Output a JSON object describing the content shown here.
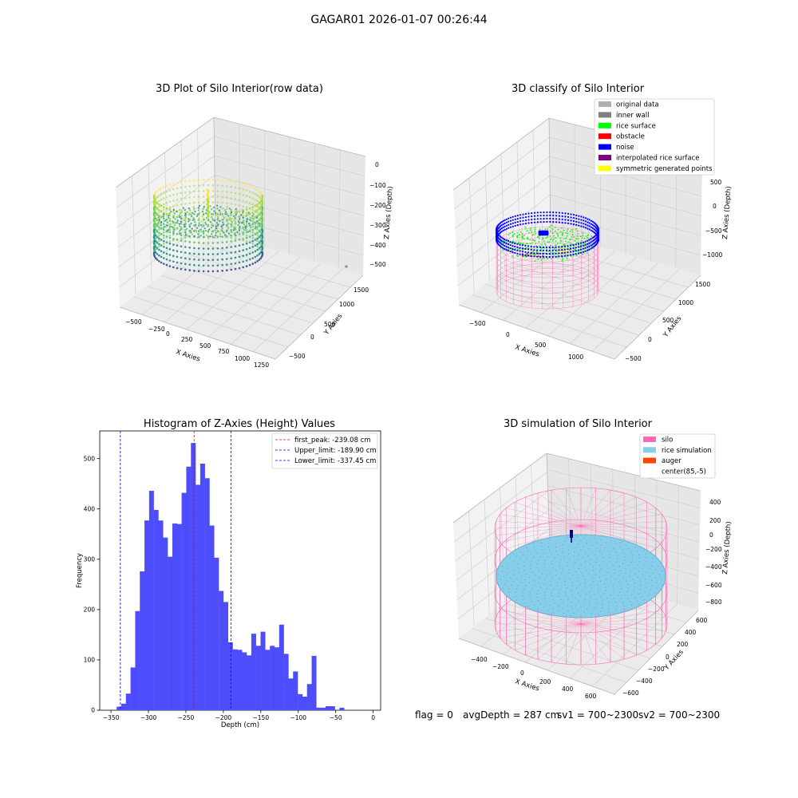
{
  "suptitle": "GAGAR01 2026-01-07 00:26:44",
  "footer": {
    "flag": "flag = 0",
    "avg": "avgDepth = 287 cm",
    "sv1": "sv1 = 700~2300",
    "sv2": "sv2 = 700~2300"
  },
  "colors": {
    "hist_bar": "#4d4dfb",
    "first_peak": "#ff0000",
    "limits": "#0000ff",
    "silo": "#ff69b4",
    "rice_simulation": "#87ceeb",
    "auger": "#ff4500",
    "original": "#b0b0b0",
    "inner_wall": "#808080",
    "rice_surface": "#00ff00",
    "obstacle": "#ff0000",
    "noise": "#0000ff",
    "interpolated": "#800080",
    "symmetric": "#ffff00"
  },
  "chart_data": [
    {
      "type": "scatter",
      "title": "3D Plot of Silo Interior(row data)",
      "xlabel": "X Axies",
      "ylabel": "Y Axies",
      "zlabel": "Z Axies (Depth)",
      "xticks": [
        "−500",
        "−250",
        "0",
        "250",
        "500",
        "750",
        "1000",
        "1250"
      ],
      "yticks": [
        "−500",
        "0",
        "500",
        "1000",
        "1500"
      ],
      "zticks": [
        "0",
        "−100",
        "−200",
        "−300",
        "−400",
        "−500"
      ],
      "zlim": [
        -550,
        0
      ]
    },
    {
      "type": "scatter",
      "title": "3D classify of Silo Interior",
      "xlabel": "X Axies",
      "ylabel": "Y Axies",
      "zlabel": "Z Axies (Depth)",
      "xticks": [
        "−500",
        "0",
        "500",
        "1000"
      ],
      "yticks": [
        "−500",
        "0",
        "500",
        "1000",
        "1500"
      ],
      "zticks": [
        "500",
        "0",
        "−500",
        "−1000"
      ],
      "legend_position": "top-right",
      "legend": [
        "original data",
        "inner wall",
        "rice surface",
        "obstacle",
        "noise",
        "interpolated rice surface",
        "symmetric generated points"
      ]
    },
    {
      "type": "bar",
      "title": "Histogram of Z-Axies (Height) Values",
      "xlabel": "Depth (cm)",
      "ylabel": "Frequency",
      "xlim": [
        -365,
        10
      ],
      "ylim": [
        0,
        555
      ],
      "xticks": [
        -350,
        -300,
        -250,
        -200,
        -150,
        -100,
        -50,
        0
      ],
      "xtick_labels": [
        "−350",
        "−300",
        "−250",
        "−200",
        "−150",
        "−100",
        "−50",
        "0"
      ],
      "yticks": [
        0,
        100,
        200,
        300,
        400,
        500
      ],
      "yticks_text": [
        "0",
        "100",
        "200",
        "300",
        "400",
        "500"
      ],
      "bin_start": -342.5,
      "bin_width": 6.2,
      "values": [
        7,
        13,
        33,
        85,
        197,
        276,
        377,
        436,
        398,
        377,
        343,
        305,
        371,
        370,
        432,
        484,
        531,
        448,
        490,
        461,
        367,
        303,
        237,
        215,
        135,
        121,
        120,
        115,
        109,
        152,
        128,
        156,
        120,
        128,
        125,
        170,
        112,
        63,
        77,
        32,
        27,
        52,
        108,
        5,
        5,
        8,
        8,
        0,
        5,
        0
      ],
      "legend_position": "top-right",
      "lines": [
        {
          "label": "first_peak: -239.08 cm",
          "x": -239.08,
          "style": "red"
        },
        {
          "label": "Upper_limit: -189.90 cm",
          "x": -189.9,
          "style": "blue"
        },
        {
          "label": "Lower_limit: -337.45 cm",
          "x": -337.45,
          "style": "blue"
        }
      ]
    },
    {
      "type": "scatter",
      "title": "3D simulation of Silo Interior",
      "xlabel": "X Axies",
      "ylabel": "Y Axies",
      "zlabel": "Z Axies (Depth)",
      "xticks": [
        "−400",
        "−200",
        "0",
        "200",
        "400",
        "600"
      ],
      "yticks": [
        "−600",
        "−400",
        "−200",
        "0",
        "200",
        "400",
        "600"
      ],
      "zticks": [
        "400",
        "200",
        "0",
        "−200",
        "−400",
        "−600",
        "−800"
      ],
      "legend_position": "top-right",
      "legend": [
        "silo",
        "rice simulation",
        "auger",
        "center(85,-5)"
      ]
    }
  ]
}
